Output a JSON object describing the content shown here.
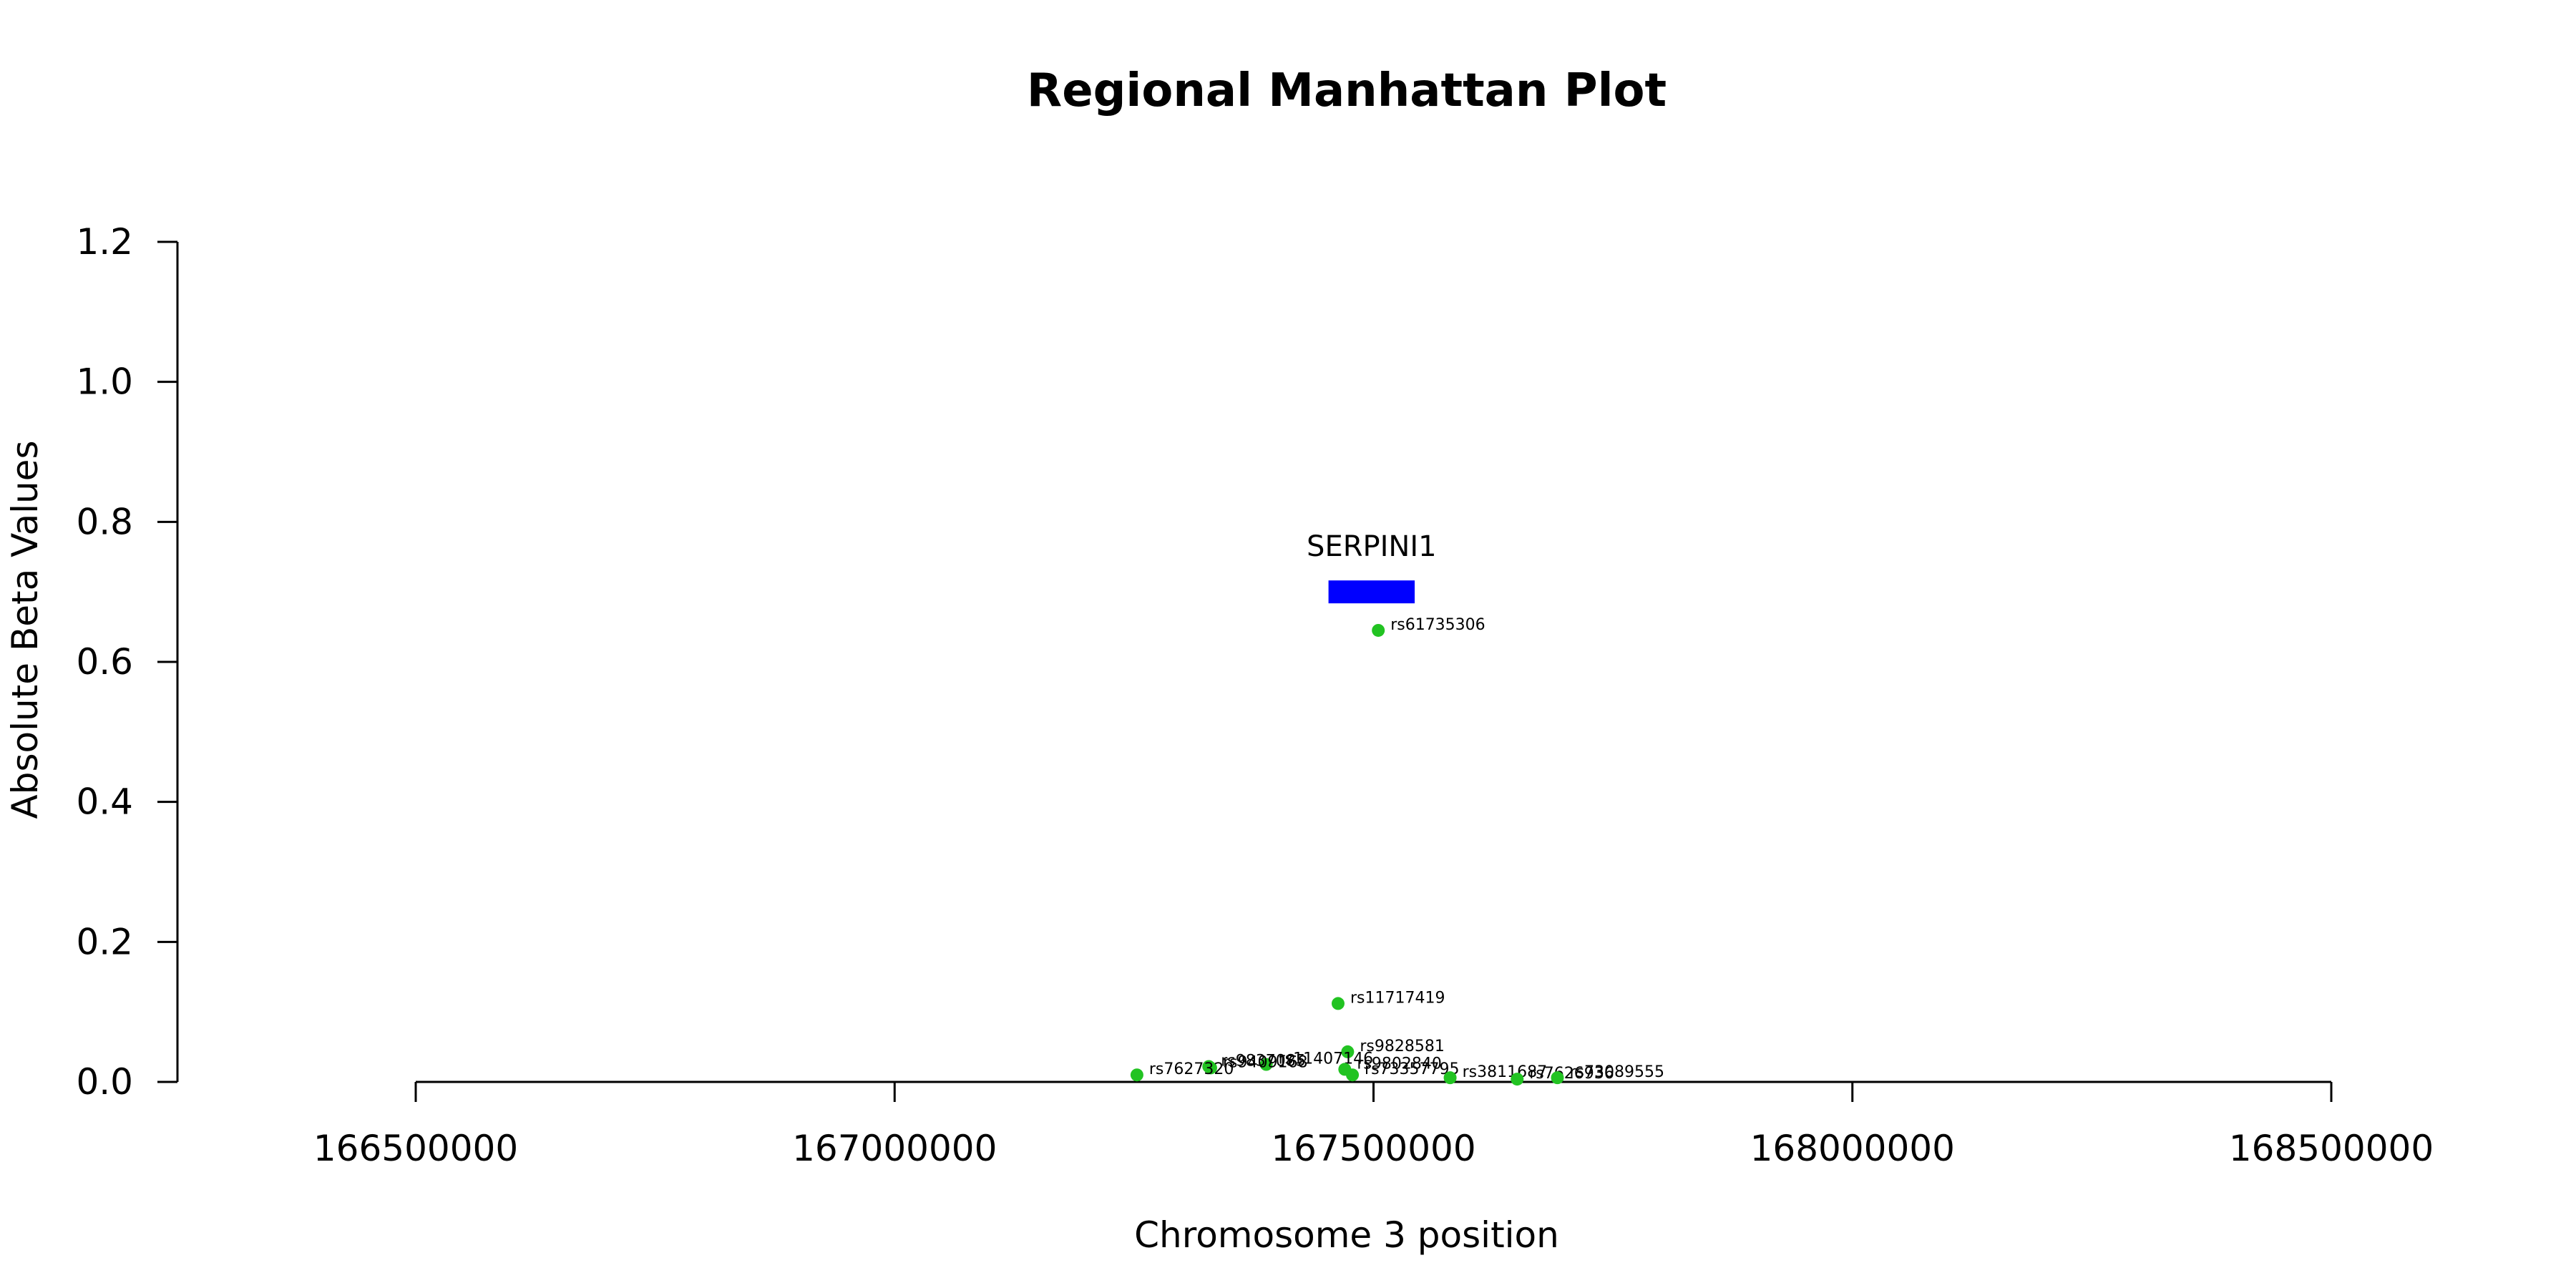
{
  "chart_data": {
    "type": "scatter",
    "title": "Regional Manhattan Plot",
    "xlabel": "Chromosome 3 position",
    "ylabel": "Absolute Beta Values",
    "xlim": [
      166250000,
      168750000
    ],
    "ylim": [
      0,
      1.2
    ],
    "x_ticks": [
      166500000,
      167000000,
      167500000,
      168000000,
      168500000
    ],
    "y_ticks": [
      "0.0",
      "0.2",
      "0.4",
      "0.6",
      "0.8",
      "1.0",
      "1.2"
    ],
    "point_color": "#22c322",
    "gene": {
      "name": "SERPINI1",
      "start": 167453000,
      "end": 167543000,
      "y": 0.7,
      "color": "#0000ff"
    },
    "points": [
      {
        "label": "rs61735306",
        "x": 167505000,
        "y": 0.645
      },
      {
        "label": "rs11717419",
        "x": 167463000,
        "y": 0.112
      },
      {
        "label": "rs9828581",
        "x": 167473000,
        "y": 0.043
      },
      {
        "label": "rs11407146",
        "x": 167388000,
        "y": 0.025
      },
      {
        "label": "rs9837085",
        "x": 167328000,
        "y": 0.022
      },
      {
        "label": "rs9409168",
        "x": 167330000,
        "y": 0.02
      },
      {
        "label": "rs9802840",
        "x": 167470000,
        "y": 0.018
      },
      {
        "label": "rs73357795",
        "x": 167478000,
        "y": 0.01
      },
      {
        "label": "rs7627320",
        "x": 167253000,
        "y": 0.01
      },
      {
        "label": "rs3811687",
        "x": 167580000,
        "y": 0.006
      },
      {
        "label": "rs7626936",
        "x": 167650000,
        "y": 0.004
      },
      {
        "label": "rs73089555",
        "x": 167692000,
        "y": 0.006
      }
    ]
  }
}
